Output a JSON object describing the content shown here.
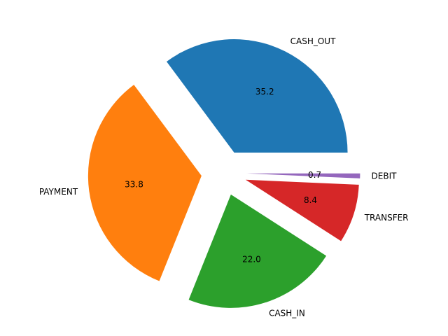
{
  "chart_data": {
    "type": "pie",
    "title": "",
    "slices": [
      {
        "label": "CASH_OUT",
        "value": 35.2,
        "pct_label": "35.2",
        "color": "#1f77b4",
        "exploded": true
      },
      {
        "label": "PAYMENT",
        "value": 33.8,
        "pct_label": "33.8",
        "color": "#ff7f0e",
        "exploded": true
      },
      {
        "label": "CASH_IN",
        "value": 22.0,
        "pct_label": "22.0",
        "color": "#2ca02c",
        "exploded": true
      },
      {
        "label": "TRANSFER",
        "value": 8.4,
        "pct_label": "8.4",
        "color": "#d62728",
        "exploded": true
      },
      {
        "label": "DEBIT",
        "value": 0.7,
        "pct_label": "0.7",
        "color": "#9467bd",
        "exploded": true
      }
    ],
    "start_angle_deg": 0,
    "direction": "counterclockwise",
    "legend": "none"
  }
}
